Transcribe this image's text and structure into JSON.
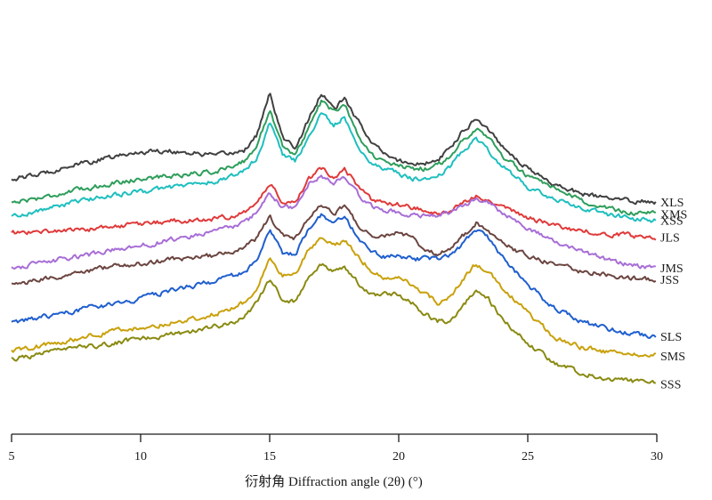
{
  "chart_data": {
    "type": "line",
    "xlabel": "衍射角 Diffraction angle (2θ) (°)",
    "xlim": [
      5,
      30
    ],
    "x_ticks": [
      5,
      10,
      15,
      20,
      25,
      30
    ],
    "x_tick_labels": [
      "5",
      "10",
      "15",
      "20",
      "25",
      "30"
    ],
    "ylabel": "",
    "grid": false,
    "legend": "none",
    "x": [
      5,
      6,
      7,
      8,
      9,
      10,
      11,
      12,
      13,
      14,
      14.5,
      15,
      15.5,
      16,
      16.5,
      17,
      17.5,
      17.9,
      18.5,
      19,
      19.5,
      20,
      20.5,
      21,
      21.5,
      22,
      22.5,
      23,
      23.5,
      24,
      25,
      26,
      27,
      28,
      29,
      30
    ],
    "series": [
      {
        "name": "XLS",
        "color": "#404040",
        "values": [
          2.1,
          2.25,
          2.55,
          2.75,
          2.95,
          3.15,
          3.2,
          3.1,
          3.0,
          3.2,
          3.8,
          5.4,
          3.7,
          3.3,
          4.4,
          5.4,
          4.8,
          5.2,
          4.2,
          3.5,
          3.0,
          2.8,
          2.7,
          2.7,
          2.8,
          3.3,
          4.0,
          4.45,
          4.0,
          3.4,
          2.5,
          1.9,
          1.55,
          1.35,
          1.25,
          1.2
        ]
      },
      {
        "name": "XMS",
        "color": "#2e9e5b",
        "values": [
          1.2,
          1.35,
          1.55,
          1.75,
          1.95,
          2.1,
          2.2,
          2.3,
          2.4,
          2.8,
          3.3,
          4.8,
          3.4,
          3.0,
          4.1,
          5.1,
          4.7,
          5.0,
          3.7,
          3.0,
          2.7,
          2.6,
          2.5,
          2.5,
          2.6,
          3.0,
          3.6,
          4.1,
          3.7,
          3.0,
          2.2,
          1.7,
          1.3,
          0.95,
          0.8,
          0.75
        ]
      },
      {
        "name": "XSS",
        "color": "#1fbfbf",
        "values": [
          0.65,
          0.85,
          1.1,
          1.3,
          1.5,
          1.6,
          1.75,
          1.9,
          2.0,
          2.4,
          2.9,
          4.3,
          3.0,
          2.8,
          3.7,
          4.6,
          4.2,
          4.5,
          3.2,
          2.7,
          2.5,
          2.3,
          2.1,
          2.1,
          2.2,
          2.6,
          3.2,
          3.7,
          3.2,
          2.6,
          1.8,
          1.3,
          1.0,
          0.75,
          0.55,
          0.5
        ]
      },
      {
        "name": "JLS",
        "color": "#e03a3a",
        "values": [
          0.0,
          0.05,
          0.1,
          0.15,
          0.25,
          0.35,
          0.45,
          0.5,
          0.55,
          0.8,
          1.1,
          1.95,
          1.2,
          1.25,
          2.1,
          2.5,
          2.2,
          2.5,
          1.7,
          1.2,
          1.2,
          1.1,
          1.0,
          0.9,
          0.7,
          0.8,
          1.2,
          1.5,
          1.3,
          1.0,
          0.6,
          0.3,
          0.1,
          -0.05,
          -0.1,
          -0.15
        ]
      },
      {
        "name": "JMS",
        "color": "#a86ed6",
        "values": [
          -1.35,
          -1.2,
          -1.0,
          -0.85,
          -0.65,
          -0.5,
          -0.3,
          -0.1,
          0.1,
          0.35,
          0.8,
          1.6,
          1.0,
          1.0,
          1.9,
          2.2,
          1.9,
          2.2,
          1.4,
          1.0,
          0.9,
          0.8,
          0.7,
          0.7,
          0.7,
          0.8,
          1.1,
          1.3,
          1.2,
          0.8,
          0.2,
          -0.3,
          -0.7,
          -1.0,
          -1.25,
          -1.35
        ]
      },
      {
        "name": "JSS",
        "color": "#6b4540",
        "values": [
          -2.0,
          -1.85,
          -1.65,
          -1.45,
          -1.3,
          -1.2,
          -1.05,
          -0.95,
          -0.85,
          -0.6,
          -0.2,
          0.6,
          -0.1,
          -0.2,
          0.6,
          1.1,
          0.7,
          1.1,
          0.2,
          -0.2,
          -0.1,
          0.1,
          -0.2,
          -0.6,
          -0.8,
          -0.6,
          -0.1,
          0.4,
          0.1,
          -0.4,
          -0.9,
          -1.2,
          -1.45,
          -1.6,
          -1.75,
          -1.8
        ]
      },
      {
        "name": "SLS",
        "color": "#1f5fce",
        "values": [
          -3.5,
          -3.3,
          -3.1,
          -2.9,
          -2.75,
          -2.55,
          -2.25,
          -2.05,
          -1.85,
          -1.55,
          -1.1,
          0.1,
          -0.8,
          -0.8,
          0.2,
          0.7,
          0.4,
          0.6,
          -0.3,
          -0.8,
          -0.9,
          -0.9,
          -1.0,
          -1.0,
          -1.0,
          -0.9,
          -0.4,
          0.1,
          -0.2,
          -0.9,
          -2.0,
          -2.9,
          -3.4,
          -3.7,
          -3.9,
          -4.0
        ]
      },
      {
        "name": "SMS",
        "color": "#c9a10c",
        "values": [
          -4.6,
          -4.4,
          -4.2,
          -4.0,
          -3.8,
          -3.65,
          -3.5,
          -3.35,
          -3.1,
          -2.7,
          -2.1,
          -1.0,
          -1.7,
          -1.6,
          -0.7,
          -0.25,
          -0.45,
          -0.25,
          -1.0,
          -1.5,
          -1.8,
          -1.8,
          -2.0,
          -2.3,
          -2.7,
          -2.5,
          -1.8,
          -1.2,
          -1.5,
          -2.1,
          -3.1,
          -4.0,
          -4.4,
          -4.6,
          -4.7,
          -4.75
        ]
      },
      {
        "name": "SSS",
        "color": "#8a8a12",
        "values": [
          -4.9,
          -4.7,
          -4.55,
          -4.4,
          -4.25,
          -4.1,
          -3.95,
          -3.8,
          -3.6,
          -3.3,
          -2.7,
          -1.8,
          -2.6,
          -2.7,
          -1.7,
          -1.2,
          -1.5,
          -1.25,
          -2.0,
          -2.4,
          -2.3,
          -2.4,
          -2.7,
          -3.1,
          -3.4,
          -3.4,
          -2.8,
          -2.2,
          -2.6,
          -3.3,
          -4.3,
          -5.0,
          -5.4,
          -5.6,
          -5.75,
          -5.85
        ]
      }
    ]
  }
}
